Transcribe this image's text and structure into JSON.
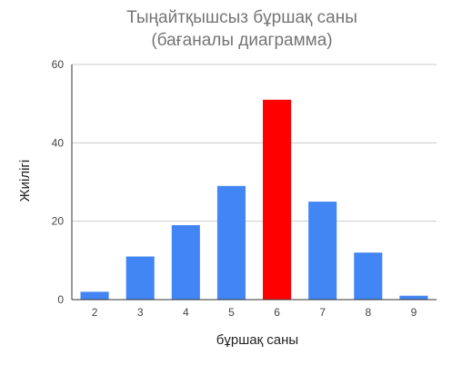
{
  "chart_data": {
    "type": "bar",
    "title_lines": [
      "Тыңайтқышсыз бұршақ саны",
      "(бағаналы диаграмма)"
    ],
    "xlabel": "бұршақ саны",
    "ylabel": "Жиілігі",
    "categories": [
      "2",
      "3",
      "4",
      "5",
      "6",
      "7",
      "8",
      "9"
    ],
    "values": [
      2,
      11,
      19,
      29,
      51,
      25,
      12,
      1
    ],
    "ylim": [
      0,
      60
    ],
    "yticks": [
      0,
      20,
      40,
      60
    ],
    "grid": true,
    "bar_color": "#4285f4",
    "highlight_color": "#ff0000",
    "highlight_index": 4
  }
}
